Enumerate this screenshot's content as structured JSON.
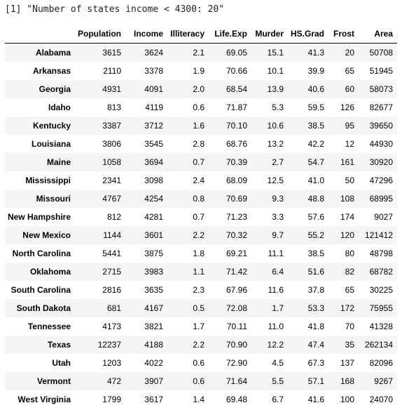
{
  "output": {
    "line": "[1] \"Number of states income < 4300: 20\""
  },
  "table": {
    "columns": [
      "Population",
      "Income",
      "Illiteracy",
      "Life.Exp",
      "Murder",
      "HS.Grad",
      "Frost",
      "Area"
    ],
    "rows": [
      {
        "name": "Alabama",
        "cells": [
          "3615",
          "3624",
          "2.1",
          "69.05",
          "15.1",
          "41.3",
          "20",
          "50708"
        ]
      },
      {
        "name": "Arkansas",
        "cells": [
          "2110",
          "3378",
          "1.9",
          "70.66",
          "10.1",
          "39.9",
          "65",
          "51945"
        ]
      },
      {
        "name": "Georgia",
        "cells": [
          "4931",
          "4091",
          "2.0",
          "68.54",
          "13.9",
          "40.6",
          "60",
          "58073"
        ]
      },
      {
        "name": "Idaho",
        "cells": [
          "813",
          "4119",
          "0.6",
          "71.87",
          "5.3",
          "59.5",
          "126",
          "82677"
        ]
      },
      {
        "name": "Kentucky",
        "cells": [
          "3387",
          "3712",
          "1.6",
          "70.10",
          "10.6",
          "38.5",
          "95",
          "39650"
        ]
      },
      {
        "name": "Louisiana",
        "cells": [
          "3806",
          "3545",
          "2.8",
          "68.76",
          "13.2",
          "42.2",
          "12",
          "44930"
        ]
      },
      {
        "name": "Maine",
        "cells": [
          "1058",
          "3694",
          "0.7",
          "70.39",
          "2.7",
          "54.7",
          "161",
          "30920"
        ]
      },
      {
        "name": "Mississippi",
        "cells": [
          "2341",
          "3098",
          "2.4",
          "68.09",
          "12.5",
          "41.0",
          "50",
          "47296"
        ]
      },
      {
        "name": "Missouri",
        "cells": [
          "4767",
          "4254",
          "0.8",
          "70.69",
          "9.3",
          "48.8",
          "108",
          "68995"
        ]
      },
      {
        "name": "New Hampshire",
        "cells": [
          "812",
          "4281",
          "0.7",
          "71.23",
          "3.3",
          "57.6",
          "174",
          "9027"
        ]
      },
      {
        "name": "New Mexico",
        "cells": [
          "1144",
          "3601",
          "2.2",
          "70.32",
          "9.7",
          "55.2",
          "120",
          "121412"
        ]
      },
      {
        "name": "North Carolina",
        "cells": [
          "5441",
          "3875",
          "1.8",
          "69.21",
          "11.1",
          "38.5",
          "80",
          "48798"
        ]
      },
      {
        "name": "Oklahoma",
        "cells": [
          "2715",
          "3983",
          "1.1",
          "71.42",
          "6.4",
          "51.6",
          "82",
          "68782"
        ]
      },
      {
        "name": "South Carolina",
        "cells": [
          "2816",
          "3635",
          "2.3",
          "67.96",
          "11.6",
          "37.8",
          "65",
          "30225"
        ]
      },
      {
        "name": "South Dakota",
        "cells": [
          "681",
          "4167",
          "0.5",
          "72.08",
          "1.7",
          "53.3",
          "172",
          "75955"
        ]
      },
      {
        "name": "Tennessee",
        "cells": [
          "4173",
          "3821",
          "1.7",
          "70.11",
          "11.0",
          "41.8",
          "70",
          "41328"
        ]
      },
      {
        "name": "Texas",
        "cells": [
          "12237",
          "4188",
          "2.2",
          "70.90",
          "12.2",
          "47.4",
          "35",
          "262134"
        ]
      },
      {
        "name": "Utah",
        "cells": [
          "1203",
          "4022",
          "0.6",
          "72.90",
          "4.5",
          "67.3",
          "137",
          "82096"
        ]
      },
      {
        "name": "Vermont",
        "cells": [
          "472",
          "3907",
          "0.6",
          "71.64",
          "5.5",
          "57.1",
          "168",
          "9267"
        ]
      },
      {
        "name": "West Virginia",
        "cells": [
          "1799",
          "3617",
          "1.4",
          "69.48",
          "6.7",
          "41.6",
          "100",
          "24070"
        ]
      }
    ]
  }
}
